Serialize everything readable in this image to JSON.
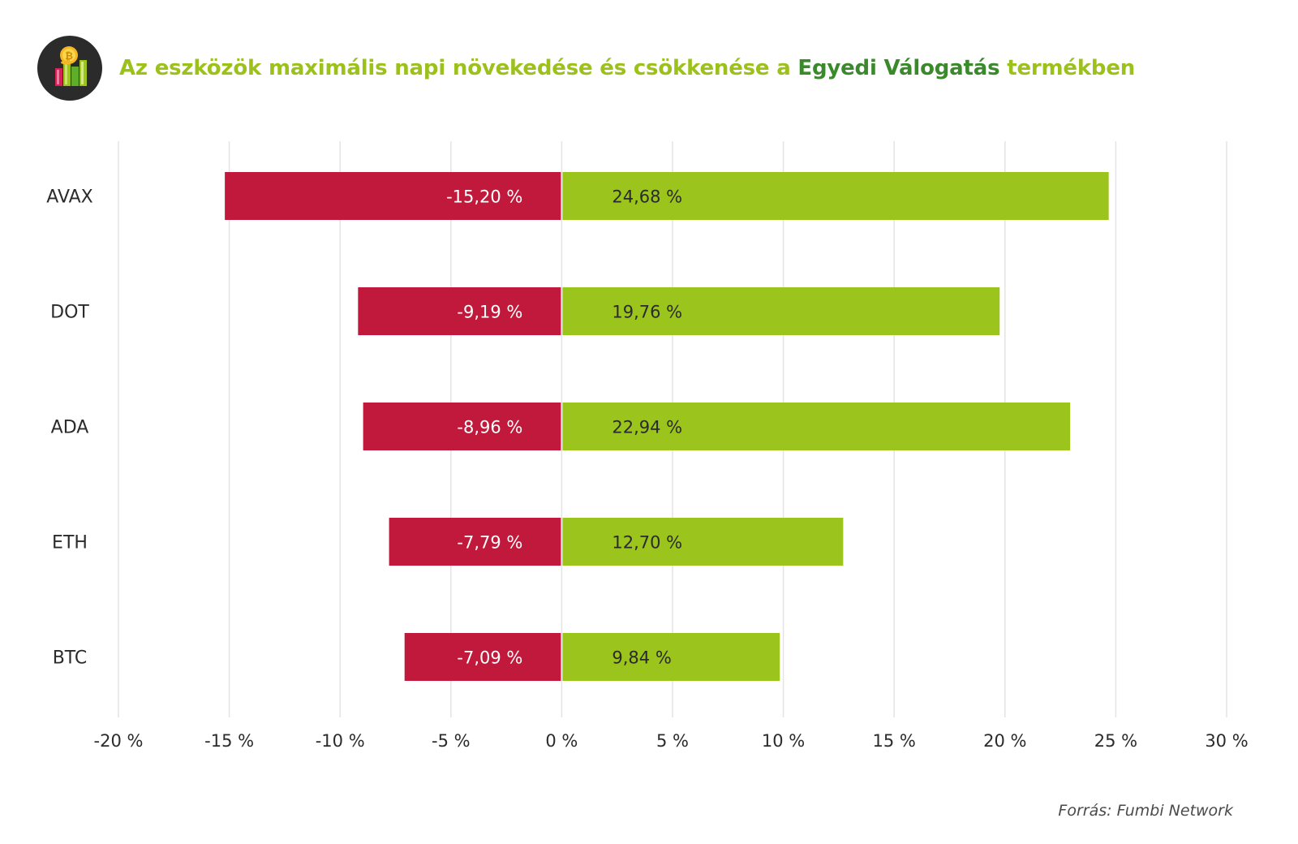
{
  "header": {
    "title_part1": "Az eszközök maximális napi növekedése és csökkenése a ",
    "title_highlight": "Egyedi Válogatás",
    "title_part2": " termékben",
    "logo_icon": "coin-bar-chart-icon"
  },
  "colors": {
    "negative": "#c0193b",
    "positive": "#9bc41c",
    "title": "#9bc11a",
    "title_highlight": "#3a8a2c",
    "grid": "#e4e4e4"
  },
  "chart_data": {
    "type": "bar",
    "orientation": "horizontal",
    "categories": [
      "AVAX",
      "DOT",
      "ADA",
      "ETH",
      "BTC"
    ],
    "series": [
      {
        "values": [
          -15.2,
          -9.19,
          -8.96,
          -7.79,
          -7.09
        ],
        "labels": [
          "-15,20 %",
          "-9,19 %",
          "-8,96 %",
          "-7,79 %",
          "-7,09 %"
        ]
      },
      {
        "values": [
          24.68,
          19.76,
          22.94,
          12.7,
          9.84
        ],
        "labels": [
          "24,68 %",
          "19,76 %",
          "22,94 %",
          "12,70 %",
          "9,84 %"
        ]
      }
    ],
    "xlim": [
      -20,
      30
    ],
    "xticks": [
      -20,
      -15,
      -10,
      -5,
      0,
      5,
      10,
      15,
      20,
      25,
      30
    ],
    "xtick_labels": [
      "-20 %",
      "-15 %",
      "-10 %",
      "-5 %",
      "0 %",
      "5 %",
      "10 %",
      "15 %",
      "20 %",
      "25 %",
      "30 %"
    ],
    "grid": true
  },
  "footer": {
    "source": "Forrás: Fumbi Network"
  }
}
